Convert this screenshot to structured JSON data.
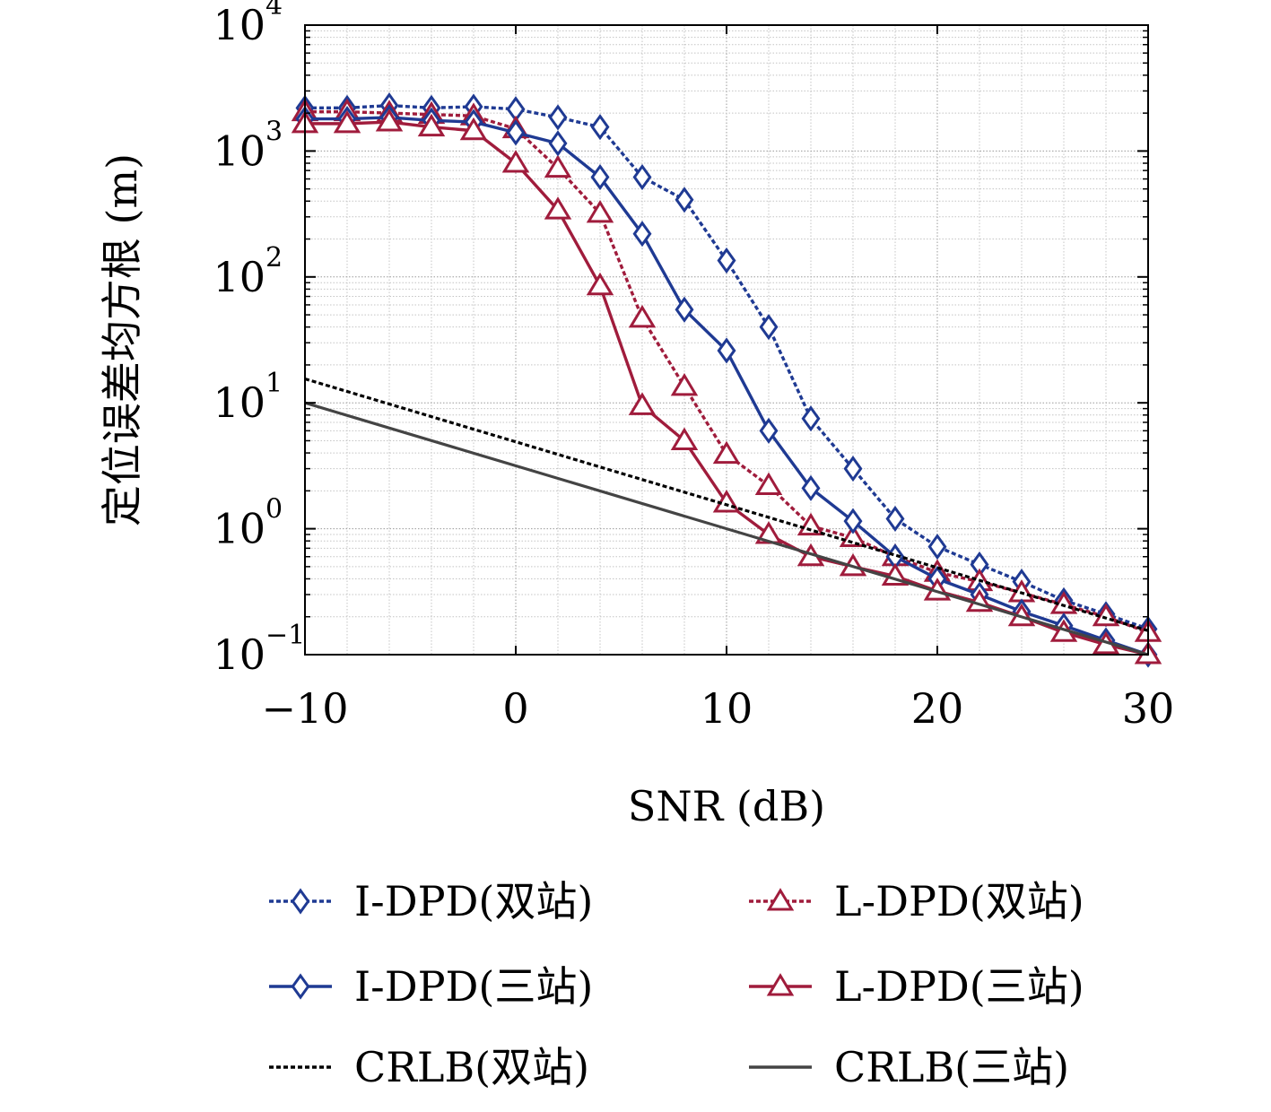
{
  "chart_data": {
    "type": "line",
    "title": "",
    "xlabel": "SNR (dB)",
    "ylabel": "定位误差均方根 (m)",
    "xlim": [
      -10,
      30
    ],
    "ylim": [
      0.1,
      10000
    ],
    "yscale": "log",
    "grid": true,
    "legend_position": "bottom",
    "x_ticks": [
      {
        "value": -10,
        "label": "−10"
      },
      {
        "value": 0,
        "label": "0"
      },
      {
        "value": 10,
        "label": "10"
      },
      {
        "value": 20,
        "label": "20"
      },
      {
        "value": 30,
        "label": "30"
      }
    ],
    "y_ticks": [
      {
        "value": 0.1,
        "base": "10",
        "exp": "−1"
      },
      {
        "value": 1,
        "base": "10",
        "exp": "0"
      },
      {
        "value": 10,
        "base": "10",
        "exp": "1"
      },
      {
        "value": 100,
        "base": "10",
        "exp": "2"
      },
      {
        "value": 1000,
        "base": "10",
        "exp": "3"
      },
      {
        "value": 10000,
        "base": "10",
        "exp": "4"
      }
    ],
    "series": [
      {
        "name": "I-DPD(双站)",
        "color": "#1f3a93",
        "dash": "dotted",
        "marker": "diamond",
        "x": [
          -10,
          -8,
          -6,
          -4,
          -2,
          0,
          2,
          4,
          6,
          8,
          10,
          12,
          14,
          16,
          18,
          20,
          22,
          24,
          26,
          28,
          30
        ],
        "y": [
          2200,
          2200,
          2300,
          2200,
          2250,
          2150,
          1850,
          1550,
          620,
          410,
          135,
          40,
          7.5,
          3.0,
          1.2,
          0.72,
          0.52,
          0.38,
          0.27,
          0.21,
          0.16
        ]
      },
      {
        "name": "L-DPD(双站)",
        "color": "#a01c3c",
        "dash": "dotted",
        "marker": "triangle",
        "x": [
          -10,
          -8,
          -6,
          -4,
          -2,
          0,
          2,
          4,
          6,
          8,
          10,
          12,
          14,
          16,
          18,
          20,
          22,
          24,
          26,
          28,
          30
        ],
        "y": [
          2050,
          2050,
          2000,
          1950,
          1900,
          1500,
          730,
          320,
          47,
          13.5,
          3.9,
          2.2,
          1.05,
          0.85,
          0.6,
          0.45,
          0.38,
          0.31,
          0.25,
          0.2,
          0.15
        ]
      },
      {
        "name": "I-DPD(三站)",
        "color": "#1f3a93",
        "dash": "solid",
        "marker": "diamond",
        "x": [
          -10,
          -8,
          -6,
          -4,
          -2,
          0,
          2,
          4,
          6,
          8,
          10,
          12,
          14,
          16,
          18,
          20,
          22,
          24,
          26,
          28,
          30
        ],
        "y": [
          1800,
          1800,
          1850,
          1750,
          1700,
          1400,
          1150,
          620,
          220,
          55,
          26,
          6.0,
          2.1,
          1.15,
          0.6,
          0.4,
          0.3,
          0.22,
          0.17,
          0.13,
          0.1
        ]
      },
      {
        "name": "L-DPD(三站)",
        "color": "#a01c3c",
        "dash": "solid",
        "marker": "triangle",
        "x": [
          -10,
          -8,
          -6,
          -4,
          -2,
          0,
          2,
          4,
          6,
          8,
          10,
          12,
          14,
          16,
          18,
          20,
          22,
          24,
          26,
          28,
          30
        ],
        "y": [
          1650,
          1650,
          1700,
          1550,
          1450,
          800,
          340,
          85,
          9.5,
          5.0,
          1.6,
          0.9,
          0.6,
          0.5,
          0.42,
          0.32,
          0.26,
          0.2,
          0.15,
          0.12,
          0.1
        ]
      },
      {
        "name": "CRLB(双站)",
        "color": "#000000",
        "dash": "dotted",
        "marker": "none",
        "x": [
          -10,
          30
        ],
        "y": [
          15.5,
          0.155
        ]
      },
      {
        "name": "CRLB(三站)",
        "color": "#444444",
        "dash": "solid",
        "marker": "none",
        "x": [
          -10,
          30
        ],
        "y": [
          10.0,
          0.1
        ]
      }
    ]
  }
}
